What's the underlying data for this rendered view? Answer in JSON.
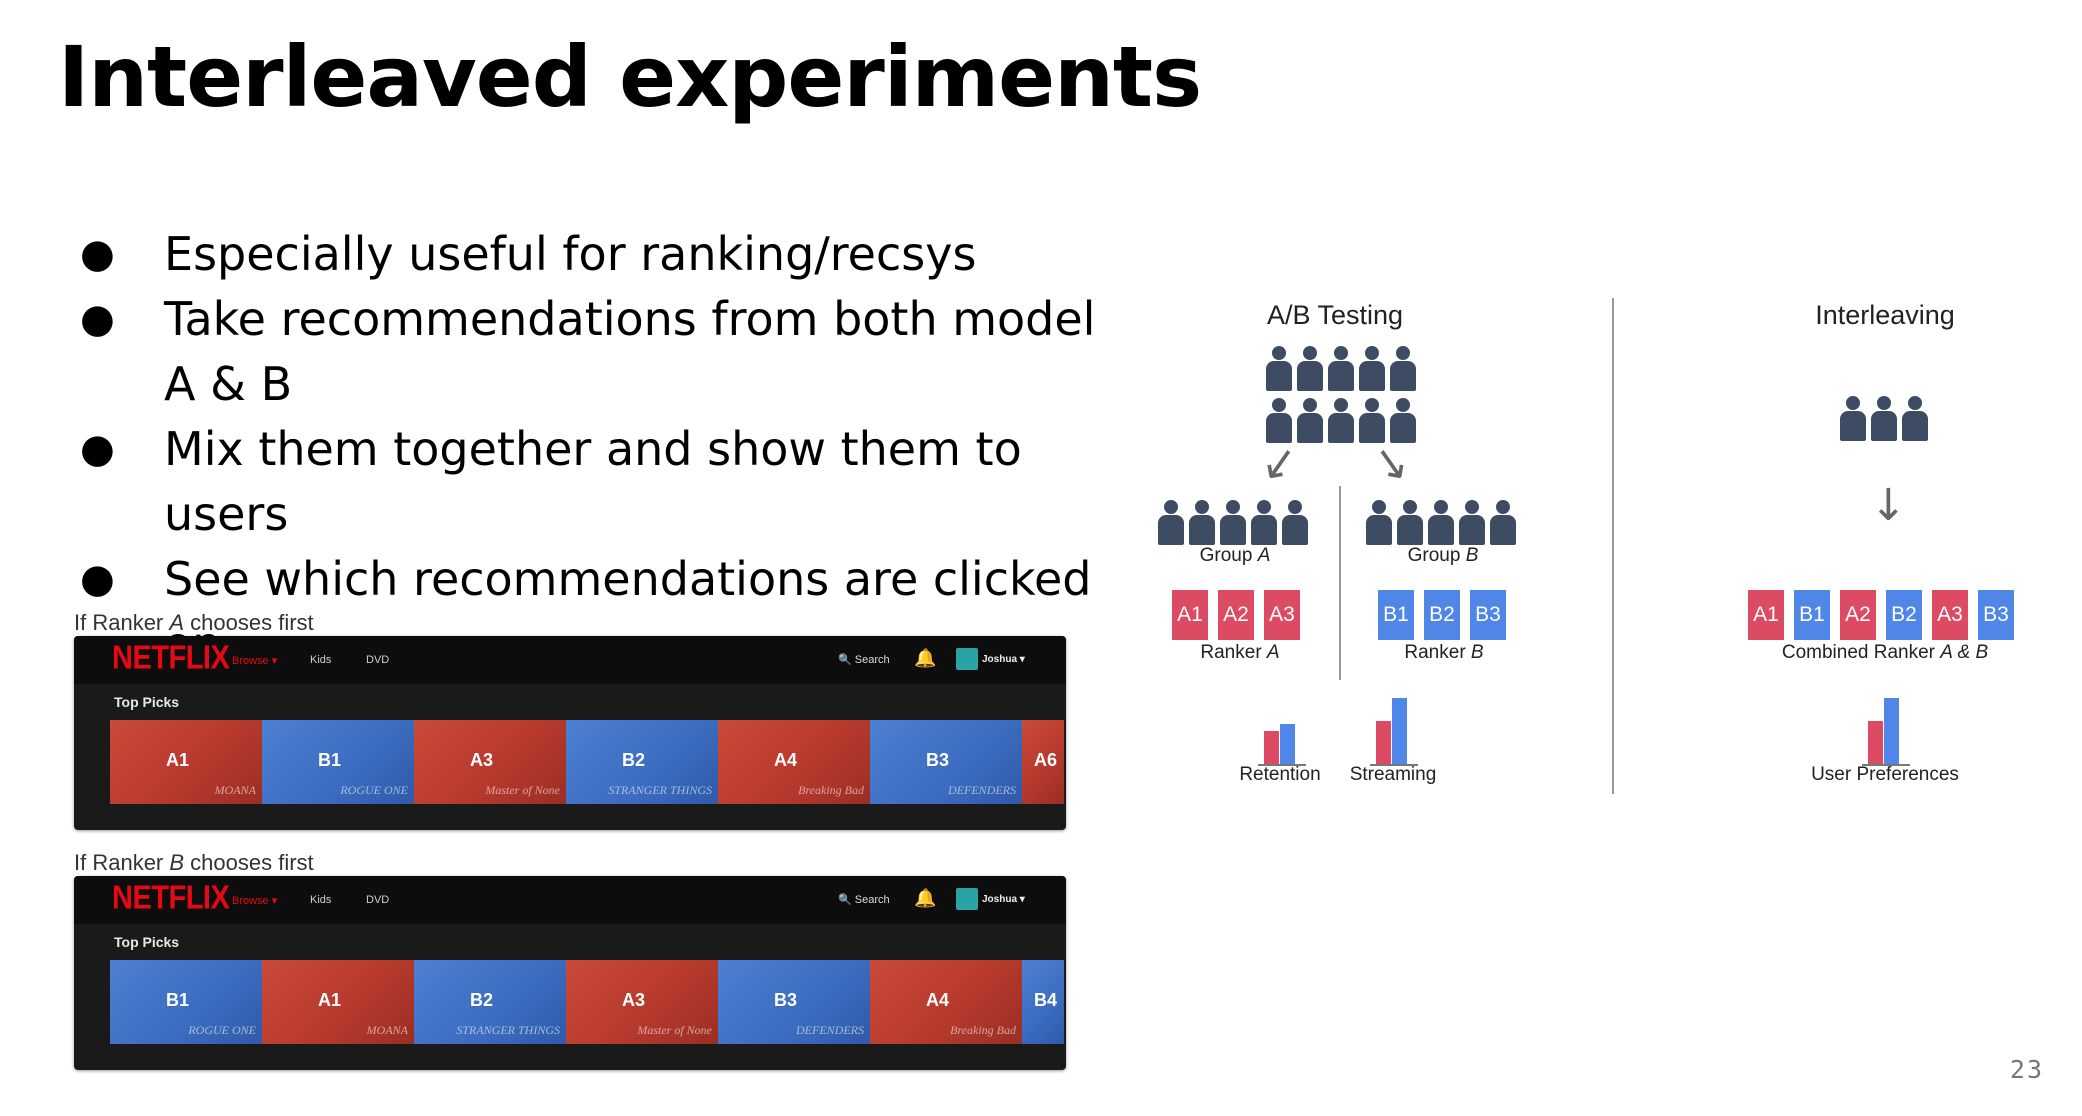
{
  "title": "Interleaved experiments",
  "bullets": [
    "Especially useful for ranking/recsys",
    "Take recommendations from both model A & B",
    "Mix them together and show them to users",
    "See which recommendations are clicked on"
  ],
  "bullet_symbol": "●",
  "rows": [
    {
      "caption_prefix": "If Ranker ",
      "caption_ranker": "A",
      "caption_suffix": " chooses first",
      "tiles": [
        {
          "label": "A1",
          "color": "red",
          "art": "MOANA"
        },
        {
          "label": "B1",
          "color": "blue",
          "art": "ROGUE ONE"
        },
        {
          "label": "A3",
          "color": "red",
          "art": "Master of None"
        },
        {
          "label": "B2",
          "color": "blue",
          "art": "STRANGER THINGS"
        },
        {
          "label": "A4",
          "color": "red",
          "art": "Breaking Bad"
        },
        {
          "label": "B3",
          "color": "blue",
          "art": "DEFENDERS"
        },
        {
          "label": "A6",
          "color": "red",
          "art": ""
        }
      ]
    },
    {
      "caption_prefix": "If Ranker ",
      "caption_ranker": "B",
      "caption_suffix": " chooses first",
      "tiles": [
        {
          "label": "B1",
          "color": "blue",
          "art": "ROGUE ONE"
        },
        {
          "label": "A1",
          "color": "red",
          "art": "MOANA"
        },
        {
          "label": "B2",
          "color": "blue",
          "art": "STRANGER THINGS"
        },
        {
          "label": "A3",
          "color": "red",
          "art": "Master of None"
        },
        {
          "label": "B3",
          "color": "blue",
          "art": "DEFENDERS"
        },
        {
          "label": "A4",
          "color": "red",
          "art": "Breaking Bad"
        },
        {
          "label": "B4",
          "color": "blue",
          "art": ""
        }
      ]
    }
  ],
  "netflix": {
    "logo": "NETFLIX",
    "browse": "Browse ▾",
    "kids": "Kids",
    "dvd": "DVD",
    "search": "🔍 Search",
    "bell": "🔔",
    "user": "Joshua ▾",
    "section": "Top Picks"
  },
  "diagram": {
    "ab_title": "A/B Testing",
    "interleaving_title": "Interleaving",
    "group_prefix": "Group ",
    "group_a": "A",
    "group_b": "B",
    "ranker_prefix": "Ranker ",
    "ranker_a": "A",
    "ranker_b": "B",
    "combined_prefix": "Combined Ranker ",
    "combined_suffix": "A & B",
    "chips_a": [
      "A1",
      "A2",
      "A3"
    ],
    "chips_b": [
      "B1",
      "B2",
      "B3"
    ],
    "chips_combined": [
      {
        "label": "A1",
        "color": "red"
      },
      {
        "label": "B1",
        "color": "blue"
      },
      {
        "label": "A2",
        "color": "red"
      },
      {
        "label": "B2",
        "color": "blue"
      },
      {
        "label": "A3",
        "color": "red"
      },
      {
        "label": "B3",
        "color": "blue"
      }
    ],
    "metric_retention": "Retention",
    "metric_streaming": "Streaming",
    "metric_user_pref": "User Preferences",
    "colors": {
      "ranker_a": "#dc4b63",
      "ranker_b": "#4f86e8",
      "people": "#3d4b63"
    },
    "bar_levels": {
      "retention": {
        "a": 0.5,
        "b": 0.6
      },
      "streaming": {
        "a": 0.65,
        "b": 1.0
      },
      "user_preferences": {
        "a": 0.65,
        "b": 1.0
      }
    }
  },
  "page_number": "23"
}
